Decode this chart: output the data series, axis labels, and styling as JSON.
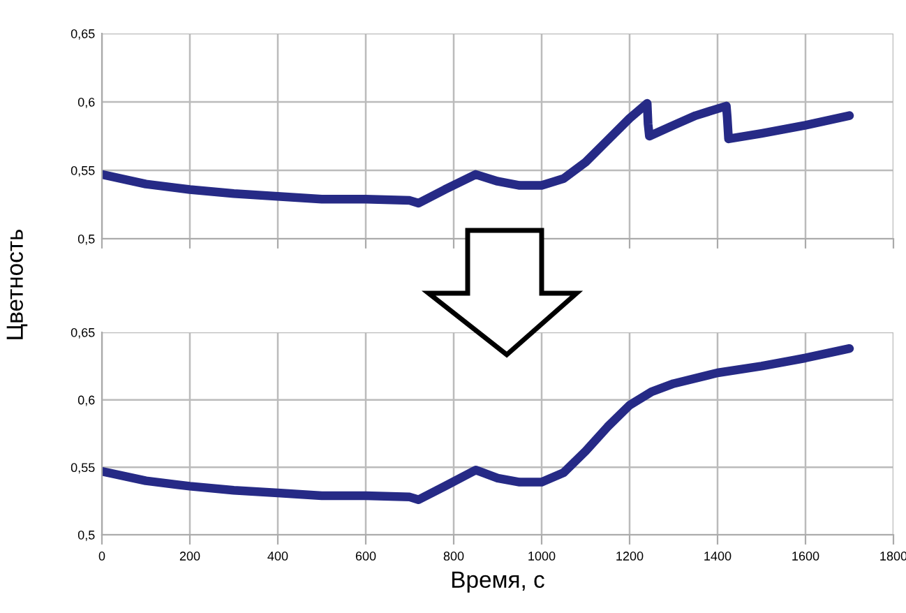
{
  "chart_data": [
    {
      "type": "line",
      "ylabel": "Цветность",
      "xlim": [
        0,
        1800
      ],
      "xticks": [
        0,
        200,
        400,
        600,
        800,
        1000,
        1200,
        1400,
        1600,
        1800
      ],
      "ylim": [
        0.5,
        0.65
      ],
      "yticks": [
        {
          "value": 0.5,
          "label": "0,5"
        },
        {
          "value": 0.55,
          "label": "0,55"
        },
        {
          "value": 0.6,
          "label": "0,6"
        },
        {
          "value": 0.65,
          "label": "0,65"
        }
      ],
      "grid": true,
      "tick_labels": "y",
      "series": [
        {
          "color": "#262a86",
          "x": [
            0,
            100,
            200,
            300,
            400,
            500,
            600,
            700,
            720,
            780,
            850,
            900,
            950,
            1000,
            1050,
            1100,
            1150,
            1200,
            1240,
            1242,
            1245,
            1300,
            1350,
            1420,
            1422,
            1425,
            1500,
            1600,
            1700
          ],
          "values": [
            0.547,
            0.54,
            0.536,
            0.533,
            0.531,
            0.529,
            0.529,
            0.528,
            0.526,
            0.536,
            0.547,
            0.542,
            0.539,
            0.539,
            0.544,
            0.556,
            0.572,
            0.588,
            0.599,
            0.584,
            0.575,
            0.583,
            0.59,
            0.597,
            0.589,
            0.573,
            0.577,
            0.583,
            0.59
          ]
        }
      ]
    },
    {
      "type": "line",
      "xlabel": "Время, с",
      "xlim": [
        0,
        1800
      ],
      "xticks": [
        0,
        200,
        400,
        600,
        800,
        1000,
        1200,
        1400,
        1600,
        1800
      ],
      "ylim": [
        0.5,
        0.65
      ],
      "yticks": [
        {
          "value": 0.5,
          "label": "0,5"
        },
        {
          "value": 0.55,
          "label": "0,55"
        },
        {
          "value": 0.6,
          "label": "0,6"
        },
        {
          "value": 0.65,
          "label": "0,65"
        }
      ],
      "grid": true,
      "series": [
        {
          "color": "#262a86",
          "x": [
            0,
            100,
            200,
            300,
            400,
            500,
            600,
            700,
            720,
            780,
            850,
            900,
            950,
            1000,
            1050,
            1100,
            1150,
            1200,
            1250,
            1300,
            1400,
            1500,
            1600,
            1700
          ],
          "values": [
            0.547,
            0.54,
            0.536,
            0.533,
            0.531,
            0.529,
            0.529,
            0.528,
            0.526,
            0.536,
            0.548,
            0.542,
            0.539,
            0.539,
            0.546,
            0.562,
            0.58,
            0.596,
            0.606,
            0.612,
            0.62,
            0.625,
            0.631,
            0.638
          ]
        }
      ]
    }
  ]
}
